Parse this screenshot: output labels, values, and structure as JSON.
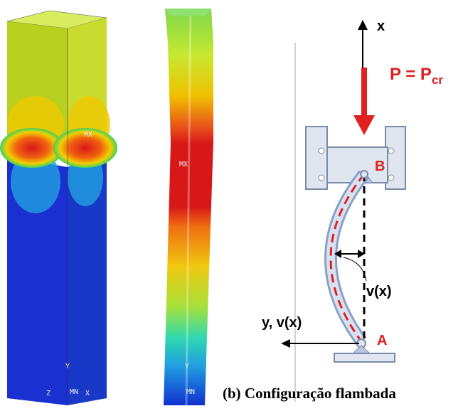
{
  "labels": {
    "x_axis": "x",
    "load": "P = P",
    "load_subscript": "cr",
    "point_b": "B",
    "deflection": "v(x)",
    "y_axis": "y, v(x)",
    "point_a": "A"
  },
  "caption": "(b) Configuração flambada",
  "fea_labels": {
    "max_left": "MX",
    "max_right": "MX",
    "y_left": "Y",
    "mn_left": "MN",
    "x_left": "X",
    "z_left": "Z",
    "y_right": "Y",
    "mn_right": "MN"
  }
}
